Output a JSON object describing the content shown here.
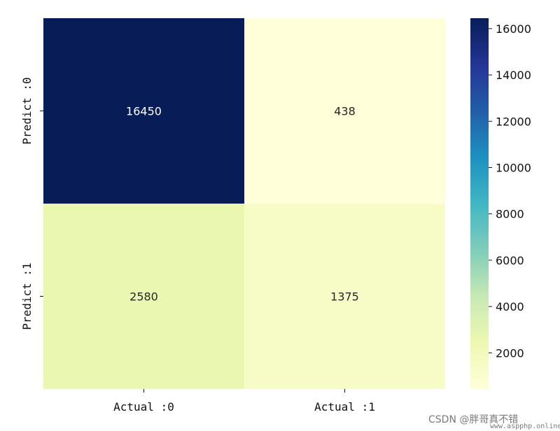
{
  "chart_data": {
    "type": "heatmap",
    "rows": [
      "Predict :0",
      "Predict :1"
    ],
    "columns": [
      "Actual :0",
      "Actual :1"
    ],
    "values": [
      [
        16450,
        438
      ],
      [
        2580,
        1375
      ]
    ],
    "colormap": "YlGnBu",
    "colorbar": {
      "ticks": [
        2000,
        4000,
        6000,
        8000,
        10000,
        12000,
        14000,
        16000
      ],
      "range": [
        438,
        16450
      ],
      "position": "right"
    },
    "annotation_colors": {
      "dark_cell": "#ffffff",
      "light_cell": "#262626"
    },
    "grid": false
  },
  "watermark": {
    "text": "CSDN @胖哥真不错",
    "subtext": "www.aspphp.online"
  }
}
